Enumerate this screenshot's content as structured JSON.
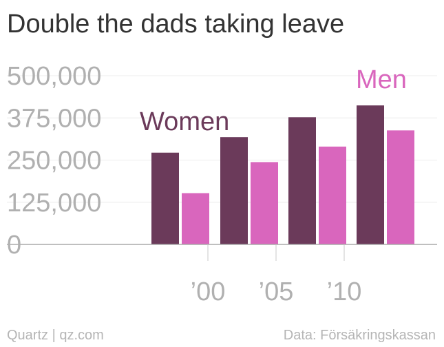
{
  "title": "Double the dads taking leave",
  "footer": {
    "left": "Quartz | qz.com",
    "right": "Data: Försäkringskassan"
  },
  "colors": {
    "women": "#6b3a5a",
    "men": "#d966bd",
    "axis_text": "#b0b0b0",
    "grid": "#ececec",
    "title": "#333333",
    "baseline": "#aaaaaa"
  },
  "chart_data": {
    "type": "bar",
    "categories": [
      "1998",
      "2002",
      "2007",
      "2012"
    ],
    "series": [
      {
        "name": "Women",
        "values": [
          272000,
          318000,
          377000,
          412000
        ]
      },
      {
        "name": "Men",
        "values": [
          152000,
          244000,
          290000,
          338000
        ]
      }
    ],
    "ylim": [
      0,
      500000
    ],
    "yticks": [
      0,
      125000,
      250000,
      375000,
      500000
    ],
    "ytick_labels": [
      "0",
      "125,000",
      "250,000",
      "375,000",
      "500,000"
    ],
    "xticks": [
      {
        "year": 2000,
        "label": "’00"
      },
      {
        "year": 2005,
        "label": "’05"
      },
      {
        "year": 2010,
        "label": "’10"
      }
    ],
    "grid": true,
    "legend": "inline labels above bars"
  }
}
